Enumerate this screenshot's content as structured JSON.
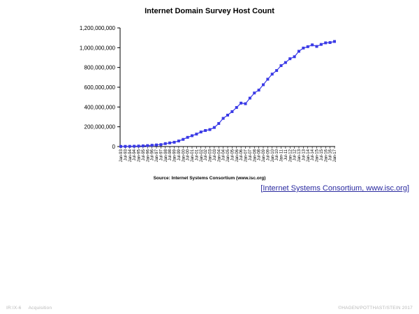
{
  "chart_data": {
    "type": "line",
    "title": "Internet Domain Survey Host Count",
    "source_note": "Source: Internet Systems Consortium (www.isc.org)",
    "ylim": [
      0,
      1200000000
    ],
    "yticks": [
      {
        "value": 0,
        "label": "0"
      },
      {
        "value": 200000000,
        "label": "200,000,000"
      },
      {
        "value": 400000000,
        "label": "400,000,000"
      },
      {
        "value": 600000000,
        "label": "600,000,000"
      },
      {
        "value": 800000000,
        "label": "800,000,000"
      },
      {
        "value": 1000000000,
        "label": "1,000,000,000"
      },
      {
        "value": 1200000000,
        "label": "1,200,000,000"
      }
    ],
    "grid": false,
    "legend": "none",
    "marker": "square",
    "series_color": "#3a3ae6",
    "x": [
      "Jan-93",
      "Jul-93",
      "Jan-94",
      "Jul-94",
      "Jan-95",
      "Jul-95",
      "Jan-96",
      "Jul-96",
      "Jan-97",
      "Jul-97",
      "Jan-98",
      "Jul-98",
      "Jan-99",
      "Jul-99",
      "Jan-00",
      "Jul-00",
      "Jan-01",
      "Jul-01",
      "Jan-02",
      "Jul-02",
      "Jan-03",
      "Jul-03",
      "Jan-04",
      "Jul-04",
      "Jan-05",
      "Jul-05",
      "Jan-06",
      "Jul-06",
      "Jan-07",
      "Jul-07",
      "Jan-08",
      "Jul-08",
      "Jan-09",
      "Jul-09",
      "Jan-10",
      "Jul-10",
      "Jan-11",
      "Jul-11",
      "Jan-12",
      "Jul-12",
      "Jan-13",
      "Jul-13",
      "Jan-14",
      "Jul-14",
      "Jan-15",
      "Jul-15",
      "Jan-16",
      "Jul-16",
      "Jan-17"
    ],
    "series": [
      {
        "values": [
          1300000,
          1800000,
          2200000,
          3200000,
          4900000,
          6600000,
          9500000,
          12900000,
          16100000,
          19500000,
          29700000,
          36700000,
          43200000,
          56200000,
          72400000,
          93000000,
          109600000,
          125900000,
          147300000,
          162100000,
          171600000,
          192700000,
          233100000,
          285100000,
          317600000,
          353300000,
          394900000,
          439300000,
          433200000,
          489800000,
          541700000,
          570900000,
          625200000,
          681100000,
          732700000,
          768900000,
          818400000,
          849900000,
          888200000,
          908600000,
          963500000,
          996200000,
          1010300000,
          1028500000,
          1012700000,
          1033000000,
          1048800000,
          1052000000,
          1062700000
        ]
      }
    ]
  },
  "source_link": {
    "text": "Internet Systems Consortium, www.isc.org"
  },
  "footer": {
    "course": "IR:IX-6",
    "section": "Acquisition",
    "copyright": "©HAGEN/POTTHAST/STEIN 2017"
  }
}
